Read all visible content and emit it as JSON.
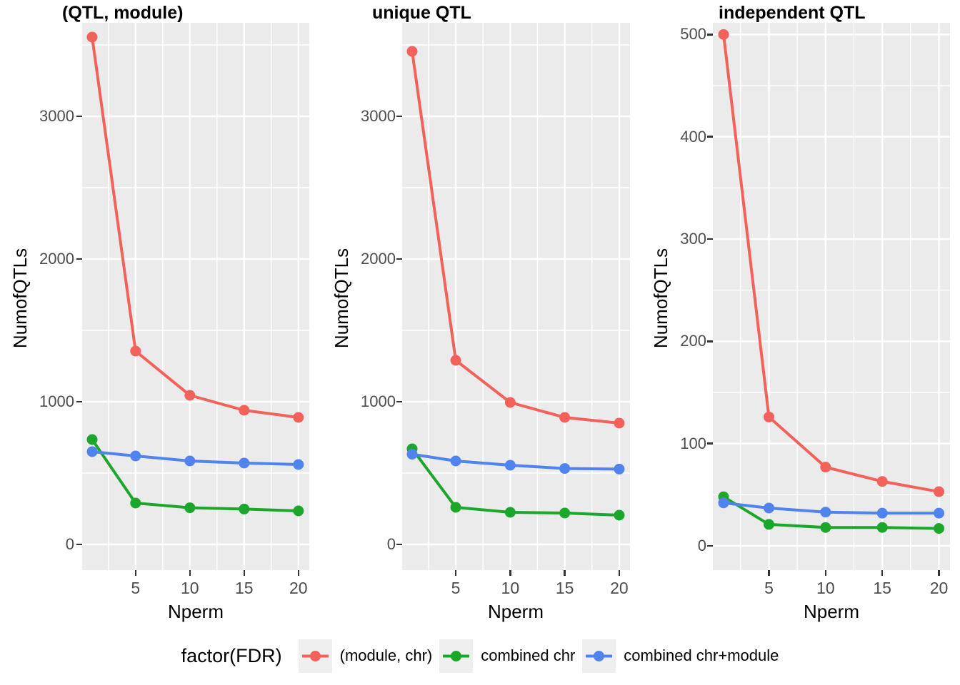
{
  "chart_data": {
    "type": "line",
    "x": [
      1,
      5,
      10,
      15,
      20
    ],
    "xticks": [
      5,
      10,
      15,
      20
    ],
    "xlabel": "Nperm",
    "ylabel": "NumofQTLs",
    "legend_position": "bottom",
    "legend_title": "factor(FDR)",
    "panels": [
      {
        "title": "(QTL, module)",
        "yticks": [
          0,
          1000,
          2000,
          3000
        ],
        "ylim": [
          -185,
          3635
        ],
        "series": [
          {
            "name": "(module, chr)",
            "color": "#F2625B",
            "values": [
              3555,
              1355,
              1045,
              940,
              890
            ]
          },
          {
            "name": "combined chr",
            "color": "#1CA72C",
            "values": [
              735,
              290,
              257,
              248,
              235
            ]
          },
          {
            "name": "combined chr+module",
            "color": "#5083EE",
            "values": [
              650,
              620,
              585,
              570,
              560
            ]
          }
        ]
      },
      {
        "title": "unique QTL",
        "yticks": [
          0,
          1000,
          2000,
          3000
        ],
        "ylim": [
          -185,
          3635
        ],
        "series": [
          {
            "name": "(module, chr)",
            "color": "#F2625B",
            "values": [
              3455,
              1290,
              995,
              890,
              850
            ]
          },
          {
            "name": "combined chr",
            "color": "#1CA72C",
            "values": [
              670,
              260,
              225,
              220,
              205
            ]
          },
          {
            "name": "combined chr+module",
            "color": "#5083EE",
            "values": [
              632,
              585,
              555,
              532,
              528
            ]
          }
        ]
      },
      {
        "title": "independent QTL",
        "yticks": [
          0,
          100,
          200,
          300,
          400,
          500
        ],
        "ylim": [
          -26,
          510
        ],
        "series": [
          {
            "name": "(module, chr)",
            "color": "#F2625B",
            "values": [
              500,
              126,
              77,
              63,
              53
            ]
          },
          {
            "name": "combined chr",
            "color": "#1CA72C",
            "values": [
              48,
              21,
              18,
              18,
              17
            ]
          },
          {
            "name": "combined chr+module",
            "color": "#5083EE",
            "values": [
              42,
              37,
              33,
              32,
              32
            ]
          }
        ]
      }
    ],
    "legend": {
      "title": "factor(FDR)",
      "entries": [
        {
          "label": "(module, chr)",
          "color": "#F2625B"
        },
        {
          "label": "combined chr",
          "color": "#1CA72C"
        },
        {
          "label": "combined chr+module",
          "color": "#5083EE"
        }
      ]
    },
    "theme": {
      "panel_background": "#EBEBEB",
      "grid_color": "#FFFFFF",
      "tick_text_color": "#4D4D4D",
      "tick_mark_color": "#333333",
      "legend_key_background": "#EFEFEF"
    }
  }
}
